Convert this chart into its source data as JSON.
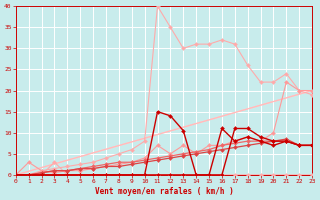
{
  "xlabel": "Vent moyen/en rafales ( km/h )",
  "xlim": [
    0,
    23
  ],
  "ylim": [
    0,
    40
  ],
  "xticks": [
    0,
    1,
    2,
    3,
    4,
    5,
    6,
    7,
    8,
    9,
    10,
    11,
    12,
    13,
    14,
    15,
    16,
    17,
    18,
    19,
    20,
    21,
    22,
    23
  ],
  "yticks": [
    0,
    5,
    10,
    15,
    20,
    25,
    30,
    35,
    40
  ],
  "background_color": "#c8ecec",
  "grid_color": "#ffffff",
  "lines": [
    {
      "x": [
        0,
        1,
        2,
        3,
        4,
        5,
        6,
        7,
        8,
        9,
        10,
        11,
        12,
        13,
        14,
        15,
        16,
        17,
        18,
        19,
        20,
        21,
        22,
        23
      ],
      "y": [
        0,
        0,
        0,
        0,
        0,
        0,
        0,
        0,
        0,
        0,
        0,
        0,
        0,
        0,
        0,
        0,
        0,
        0,
        0,
        0,
        0,
        0,
        0,
        0
      ],
      "color": "#ffcccc",
      "marker": null,
      "linewidth": 0.8,
      "zorder": 2
    },
    {
      "x": [
        0,
        23
      ],
      "y": [
        0,
        20
      ],
      "color": "#ffcccc",
      "marker": null,
      "linewidth": 0.8,
      "zorder": 2
    },
    {
      "x": [
        0,
        23
      ],
      "y": [
        0,
        20
      ],
      "color": "#ffbbbb",
      "marker": null,
      "linewidth": 0.8,
      "zorder": 2
    },
    {
      "x": [
        0,
        1,
        2,
        3,
        4,
        5,
        6,
        7,
        8,
        9,
        10,
        11,
        12,
        13,
        14,
        15,
        16,
        17,
        18,
        19,
        20,
        21,
        22,
        23
      ],
      "y": [
        0,
        0,
        0,
        3,
        0,
        0,
        0,
        0,
        0,
        0,
        0,
        0,
        0,
        0,
        0,
        0,
        0,
        0,
        0,
        0,
        0,
        0,
        0,
        0
      ],
      "color": "#ffaaaa",
      "marker": "D",
      "markersize": 2,
      "linewidth": 0.8,
      "zorder": 3
    },
    {
      "x": [
        0,
        1,
        2,
        3,
        4,
        5,
        6,
        7,
        8,
        9,
        10,
        11,
        12,
        13,
        14,
        15,
        16,
        17,
        18,
        19,
        20,
        21,
        22,
        23
      ],
      "y": [
        0,
        0,
        1,
        1.5,
        2,
        2.5,
        3,
        4,
        5,
        6,
        8,
        40,
        35,
        30,
        31,
        31,
        32,
        31,
        26,
        22,
        22,
        24,
        20,
        19
      ],
      "color": "#ffaaaa",
      "marker": "D",
      "markersize": 2,
      "linewidth": 0.8,
      "zorder": 3
    },
    {
      "x": [
        0,
        1,
        2,
        3,
        4,
        5,
        6,
        7,
        8,
        9,
        10,
        11,
        12,
        13,
        14,
        15,
        16,
        17,
        18,
        19,
        20,
        21,
        22,
        23
      ],
      "y": [
        0,
        3,
        1,
        0.5,
        1,
        1,
        1.5,
        2,
        2.5,
        3,
        4,
        7,
        5,
        7,
        5,
        7,
        7,
        8,
        9,
        8,
        10,
        22,
        20,
        20
      ],
      "color": "#ff9999",
      "marker": "D",
      "markersize": 2,
      "linewidth": 0.8,
      "zorder": 3
    },
    {
      "x": [
        0,
        1,
        2,
        3,
        4,
        5,
        6,
        7,
        8,
        9,
        10,
        11,
        12,
        13,
        14,
        15,
        16,
        17,
        18,
        19,
        20,
        21,
        22,
        23
      ],
      "y": [
        0,
        0,
        0.5,
        1,
        1,
        1.5,
        2,
        2.5,
        3,
        3,
        3.5,
        4,
        4.5,
        5,
        5.5,
        6,
        7,
        7.5,
        8,
        8,
        8,
        8,
        7,
        7
      ],
      "color": "#ee6666",
      "marker": "D",
      "markersize": 2,
      "linewidth": 0.9,
      "zorder": 4
    },
    {
      "x": [
        0,
        1,
        2,
        3,
        4,
        5,
        6,
        7,
        8,
        9,
        10,
        11,
        12,
        13,
        14,
        15,
        16,
        17,
        18,
        19,
        20,
        21,
        22,
        23
      ],
      "y": [
        0,
        0,
        0.5,
        1,
        1,
        1.5,
        1.5,
        2,
        2,
        2.5,
        3,
        3.5,
        4,
        4.5,
        5,
        5.5,
        6,
        6.5,
        7,
        7.5,
        8,
        8.5,
        7,
        7
      ],
      "color": "#dd4444",
      "marker": "D",
      "markersize": 2,
      "linewidth": 0.9,
      "zorder": 4
    },
    {
      "x": [
        0,
        1,
        2,
        3,
        4,
        5,
        6,
        7,
        8,
        9,
        10,
        11,
        12,
        13,
        14,
        15,
        16,
        17,
        18,
        19,
        20,
        21,
        22,
        23
      ],
      "y": [
        0,
        0,
        0,
        0,
        0,
        0,
        0,
        0,
        0,
        0,
        0,
        15,
        14,
        10.5,
        0,
        0,
        11,
        8,
        9,
        8,
        7,
        8,
        7,
        7
      ],
      "color": "#cc0000",
      "marker": "D",
      "markersize": 2,
      "linewidth": 1.0,
      "zorder": 5
    },
    {
      "x": [
        0,
        1,
        2,
        3,
        4,
        5,
        6,
        7,
        8,
        9,
        10,
        11,
        12,
        13,
        14,
        15,
        16,
        17,
        18,
        19,
        20,
        21,
        22,
        23
      ],
      "y": [
        0,
        0,
        0,
        0,
        0,
        0,
        0,
        0,
        0,
        0,
        0,
        0,
        0,
        0,
        0,
        0,
        0,
        11,
        11,
        9,
        8,
        8,
        7,
        7
      ],
      "color": "#cc0000",
      "marker": "D",
      "markersize": 2,
      "linewidth": 1.0,
      "zorder": 5
    }
  ],
  "diag_lines": [
    {
      "x": [
        0,
        23
      ],
      "y": [
        0,
        20
      ],
      "color": "#ffdddd",
      "lw": 0.7
    },
    {
      "x": [
        0,
        23
      ],
      "y": [
        0,
        20
      ],
      "color": "#ffcccc",
      "lw": 0.7
    }
  ]
}
